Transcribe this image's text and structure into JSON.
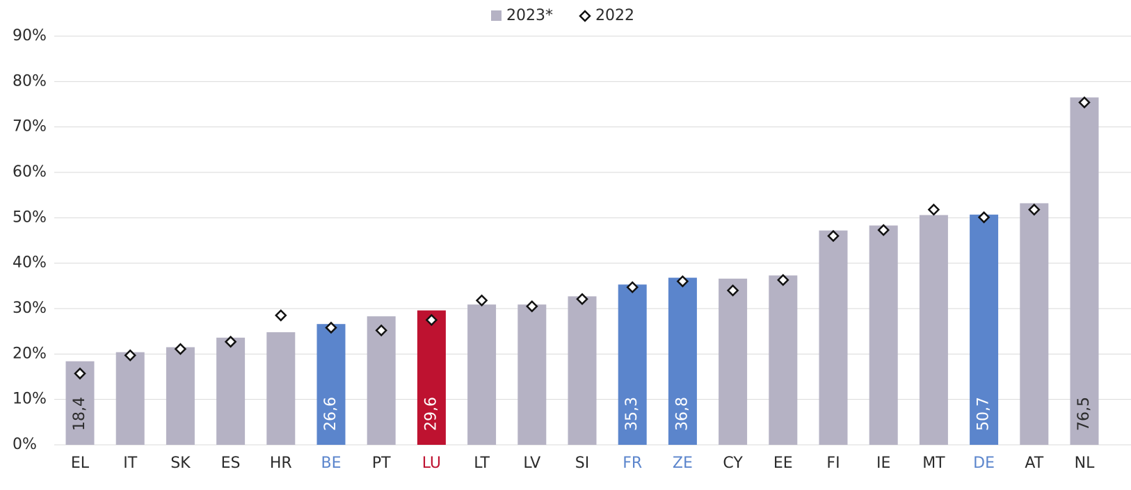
{
  "chart_data": {
    "type": "bar",
    "categories": [
      "EL",
      "IT",
      "SK",
      "ES",
      "HR",
      "BE",
      "PT",
      "LU",
      "LT",
      "LV",
      "SI",
      "FR",
      "ZE",
      "CY",
      "EE",
      "FI",
      "IE",
      "MT",
      "DE",
      "AT",
      "NL"
    ],
    "series": [
      {
        "name": "2023*",
        "color": "#b5b2c4",
        "colors": [
          "#b5b2c4",
          "#b5b2c4",
          "#b5b2c4",
          "#b5b2c4",
          "#b5b2c4",
          "#5b85cc",
          "#b5b2c4",
          "#be1230",
          "#b5b2c4",
          "#b5b2c4",
          "#b5b2c4",
          "#5b85cc",
          "#5b85cc",
          "#b5b2c4",
          "#b5b2c4",
          "#b5b2c4",
          "#b5b2c4",
          "#b5b2c4",
          "#5b85cc",
          "#b5b2c4",
          "#b5b2c4"
        ],
        "values": [
          18.4,
          20.4,
          21.5,
          23.6,
          24.8,
          26.6,
          28.3,
          29.6,
          30.9,
          30.9,
          32.7,
          35.3,
          36.8,
          36.6,
          37.3,
          47.2,
          48.3,
          50.6,
          50.7,
          53.2,
          76.5
        ],
        "value_labels": [
          "18,4",
          null,
          null,
          null,
          null,
          "26,6",
          null,
          "29,6",
          null,
          null,
          null,
          "35,3",
          "36,8",
          null,
          null,
          null,
          null,
          null,
          "50,7",
          null,
          "76,5"
        ]
      },
      {
        "name": "2022",
        "type": "scatter",
        "color": "#ffffff",
        "values": [
          15.7,
          19.7,
          21.1,
          22.7,
          28.5,
          25.8,
          25.2,
          27.5,
          31.8,
          30.5,
          32.1,
          34.7,
          36.0,
          34.0,
          36.3,
          46.0,
          47.3,
          51.8,
          50.1,
          51.8,
          75.4
        ]
      }
    ],
    "ylim": [
      0,
      90
    ],
    "yticks": [
      {
        "value": 0,
        "label": "0%"
      },
      {
        "value": 10,
        "label": "10%"
      },
      {
        "value": 20,
        "label": "20%"
      },
      {
        "value": 30,
        "label": "30%"
      },
      {
        "value": 40,
        "label": "40%"
      },
      {
        "value": 50,
        "label": "50%"
      },
      {
        "value": 60,
        "label": "60%"
      },
      {
        "value": 70,
        "label": "70%"
      },
      {
        "value": 80,
        "label": "80%"
      },
      {
        "value": 90,
        "label": "90%"
      }
    ],
    "grid": true,
    "legend": "top"
  }
}
